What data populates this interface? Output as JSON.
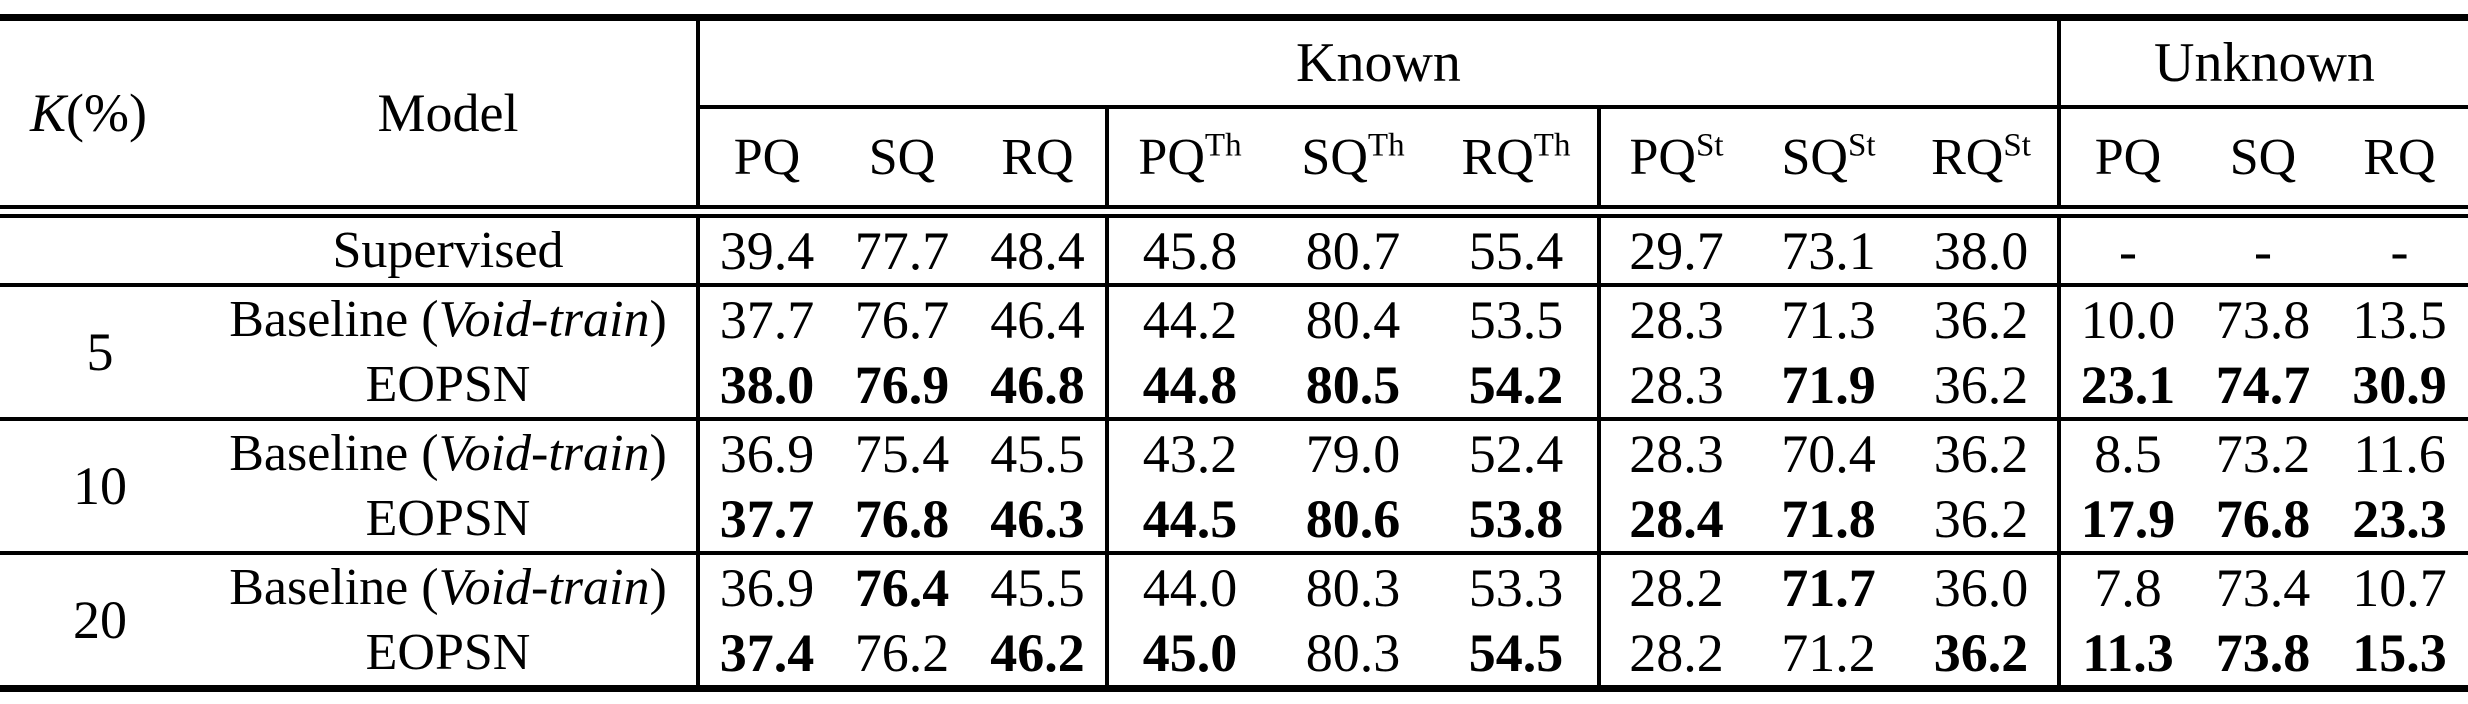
{
  "header": {
    "k_italic": "K",
    "k_rest": "(%)",
    "model": "Model",
    "known": "Known",
    "unknown": "Unknown",
    "metrics": [
      {
        "base": "PQ",
        "sup": ""
      },
      {
        "base": "SQ",
        "sup": ""
      },
      {
        "base": "RQ",
        "sup": ""
      },
      {
        "base": "PQ",
        "sup": "Th"
      },
      {
        "base": "SQ",
        "sup": "Th"
      },
      {
        "base": "RQ",
        "sup": "Th"
      },
      {
        "base": "PQ",
        "sup": "St"
      },
      {
        "base": "SQ",
        "sup": "St"
      },
      {
        "base": "RQ",
        "sup": "St"
      },
      {
        "base": "PQ",
        "sup": ""
      },
      {
        "base": "SQ",
        "sup": ""
      },
      {
        "base": "RQ",
        "sup": ""
      }
    ]
  },
  "groups": [
    {
      "k": "",
      "rows": [
        {
          "model": {
            "pre": "Supervised",
            "it": "",
            "post": ""
          },
          "values": [
            "39.4",
            "77.7",
            "48.4",
            "45.8",
            "80.7",
            "55.4",
            "29.7",
            "73.1",
            "38.0",
            "-",
            "-",
            "-"
          ],
          "bold": [
            0,
            0,
            0,
            0,
            0,
            0,
            0,
            0,
            0,
            0,
            0,
            0
          ]
        }
      ]
    },
    {
      "k": "5",
      "rows": [
        {
          "model": {
            "pre": "Baseline (",
            "it": "Void-train",
            "post": ")"
          },
          "values": [
            "37.7",
            "76.7",
            "46.4",
            "44.2",
            "80.4",
            "53.5",
            "28.3",
            "71.3",
            "36.2",
            "10.0",
            "73.8",
            "13.5"
          ],
          "bold": [
            0,
            0,
            0,
            0,
            0,
            0,
            0,
            0,
            0,
            0,
            0,
            0
          ]
        },
        {
          "model": {
            "pre": "EOPSN",
            "it": "",
            "post": ""
          },
          "values": [
            "38.0",
            "76.9",
            "46.8",
            "44.8",
            "80.5",
            "54.2",
            "28.3",
            "71.9",
            "36.2",
            "23.1",
            "74.7",
            "30.9"
          ],
          "bold": [
            1,
            1,
            1,
            1,
            1,
            1,
            0,
            1,
            0,
            1,
            1,
            1
          ]
        }
      ]
    },
    {
      "k": "10",
      "rows": [
        {
          "model": {
            "pre": "Baseline (",
            "it": "Void-train",
            "post": ")"
          },
          "values": [
            "36.9",
            "75.4",
            "45.5",
            "43.2",
            "79.0",
            "52.4",
            "28.3",
            "70.4",
            "36.2",
            "8.5",
            "73.2",
            "11.6"
          ],
          "bold": [
            0,
            0,
            0,
            0,
            0,
            0,
            0,
            0,
            0,
            0,
            0,
            0
          ]
        },
        {
          "model": {
            "pre": "EOPSN",
            "it": "",
            "post": ""
          },
          "values": [
            "37.7",
            "76.8",
            "46.3",
            "44.5",
            "80.6",
            "53.8",
            "28.4",
            "71.8",
            "36.2",
            "17.9",
            "76.8",
            "23.3"
          ],
          "bold": [
            1,
            1,
            1,
            1,
            1,
            1,
            1,
            1,
            0,
            1,
            1,
            1
          ]
        }
      ]
    },
    {
      "k": "20",
      "rows": [
        {
          "model": {
            "pre": "Baseline (",
            "it": "Void-train",
            "post": ")"
          },
          "values": [
            "36.9",
            "76.4",
            "45.5",
            "44.0",
            "80.3",
            "53.3",
            "28.2",
            "71.7",
            "36.0",
            "7.8",
            "73.4",
            "10.7"
          ],
          "bold": [
            0,
            1,
            0,
            0,
            0,
            0,
            0,
            1,
            0,
            0,
            0,
            0
          ]
        },
        {
          "model": {
            "pre": "EOPSN",
            "it": "",
            "post": ""
          },
          "values": [
            "37.4",
            "76.2",
            "46.2",
            "45.0",
            "80.3",
            "54.5",
            "28.2",
            "71.2",
            "36.2",
            "11.3",
            "73.8",
            "15.3"
          ],
          "bold": [
            1,
            0,
            1,
            1,
            0,
            1,
            0,
            0,
            1,
            1,
            1,
            1
          ]
        }
      ]
    }
  ]
}
